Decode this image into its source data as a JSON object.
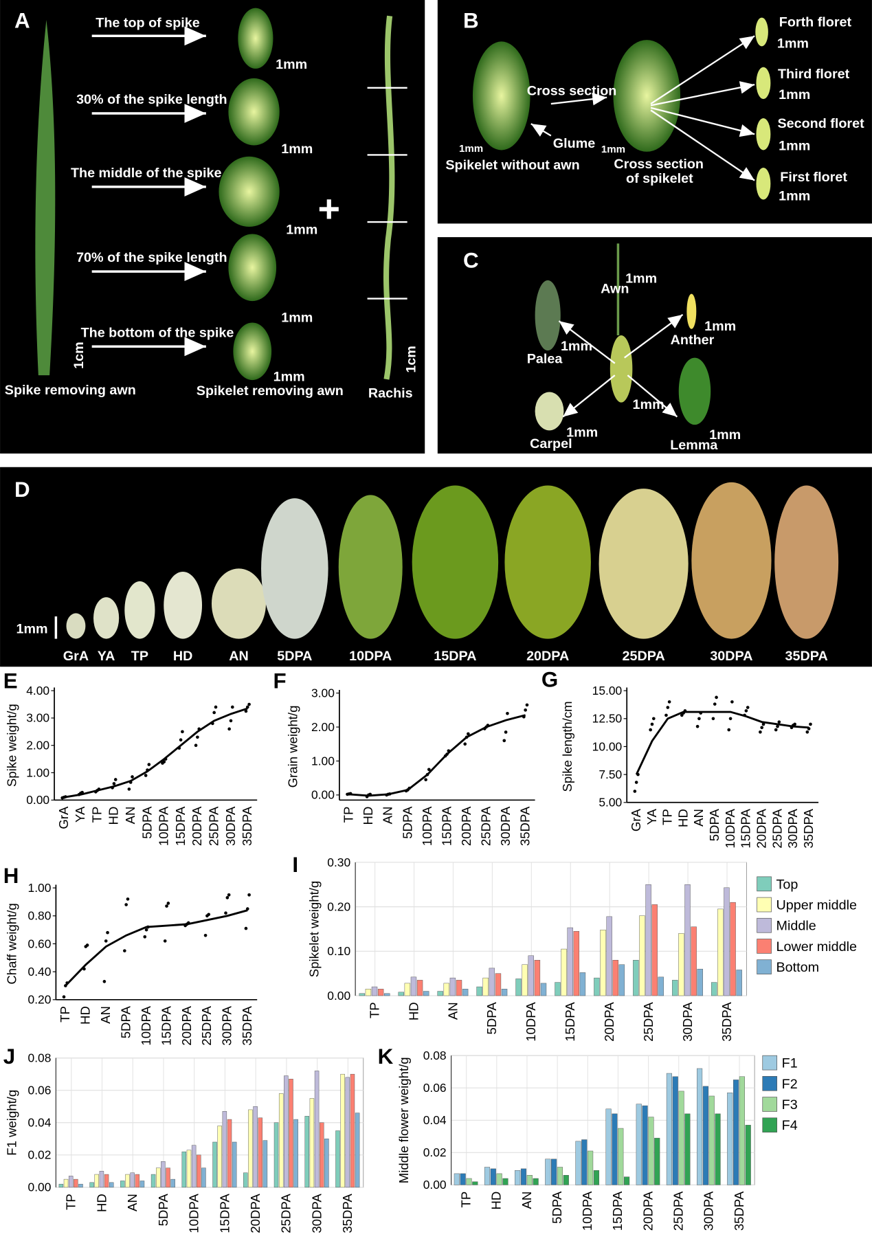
{
  "panels": {
    "A": {
      "label": "A",
      "texts": [
        "The top of spike",
        "1mm",
        "30% of the spike length",
        "1mm",
        "The middle of the spike",
        "1mm",
        "70% of the spike length",
        "1mm",
        "The bottom of the spike",
        "1mm",
        "1cm",
        "1cm",
        "Spike removing awn",
        "Spikelet removing awn",
        "Rachis",
        "+"
      ]
    },
    "B": {
      "label": "B",
      "texts": [
        "Cross section",
        "Glume",
        "1mm",
        "1mm",
        "Spikelet without awn",
        "Cross section",
        "of spikelet",
        "Forth floret",
        "1mm",
        "Third floret",
        "1mm",
        "Second floret",
        "1mm",
        "First floret",
        "1mm"
      ]
    },
    "C": {
      "label": "C",
      "texts": [
        "Awn",
        "1mm",
        "1mm",
        "Anther",
        "1mm",
        "Palea",
        "1mm",
        "1mm",
        "Carpel",
        "1mm",
        "Lemma"
      ]
    },
    "D": {
      "label": "D",
      "scale": "1mm",
      "stages": [
        "GrA",
        "YA",
        "TP",
        "HD",
        "AN",
        "5DPA",
        "10DPA",
        "15DPA",
        "20DPA",
        "25DPA",
        "30DPA",
        "35DPA"
      ]
    }
  },
  "chart_data": [
    {
      "type": "line",
      "label": "E",
      "y_label": "Spike weight/g",
      "color": "#000000",
      "categories": [
        "GrA",
        "YA",
        "TP",
        "HD",
        "AN",
        "5DPA",
        "10DPA",
        "15DPA",
        "20DPA",
        "25DPA",
        "30DPA",
        "35DPA"
      ],
      "values": [
        0.1,
        0.2,
        0.35,
        0.5,
        0.7,
        1.05,
        1.5,
        2.0,
        2.5,
        2.9,
        3.15,
        3.35
      ],
      "replicates": [
        [
          0.08,
          0.1,
          0.12
        ],
        [
          0.2,
          0.25,
          0.28
        ],
        [
          0.3,
          0.35,
          0.4
        ],
        [
          0.45,
          0.6,
          0.75
        ],
        [
          0.4,
          0.65,
          0.85
        ],
        [
          0.9,
          1.1,
          1.3
        ],
        [
          1.35,
          1.4,
          1.5
        ],
        [
          1.9,
          2.2,
          2.5
        ],
        [
          2.0,
          2.3,
          2.6
        ],
        [
          2.8,
          3.2,
          3.4
        ],
        [
          2.6,
          2.9,
          3.4
        ],
        [
          3.25,
          3.4,
          3.5
        ]
      ],
      "ylim": [
        0,
        4
      ],
      "yticks": [
        {
          "value": 0,
          "label": "0.00"
        },
        {
          "value": 1,
          "label": "1.00"
        },
        {
          "value": 2,
          "label": "2.00"
        },
        {
          "value": 3,
          "label": "3.00"
        },
        {
          "value": 4,
          "label": "4.00"
        }
      ],
      "grid": false
    },
    {
      "type": "line",
      "label": "F",
      "y_label": "Grain weight/g",
      "color": "#000000",
      "categories": [
        "TP",
        "HD",
        "AN",
        "5DPA",
        "10DPA",
        "15DPA",
        "20DPA",
        "25DPA",
        "30DPA",
        "35DPA"
      ],
      "values": [
        0.02,
        -0.02,
        0.02,
        0.15,
        0.6,
        1.2,
        1.7,
        2.0,
        2.2,
        2.35
      ],
      "replicates": [
        [
          0.02,
          0.03,
          0.04
        ],
        [
          -0.05,
          0.0,
          0.02
        ],
        [
          0.0,
          0.02,
          0.03
        ],
        [
          0.12,
          0.15,
          0.2
        ],
        [
          0.45,
          0.6,
          0.75
        ],
        [
          1.15,
          1.2,
          1.3
        ],
        [
          1.5,
          1.7,
          1.8
        ],
        [
          1.95,
          2.0,
          2.05
        ],
        [
          1.6,
          1.85,
          2.4
        ],
        [
          2.3,
          2.5,
          2.65
        ]
      ],
      "ylim": [
        -0.15,
        3
      ],
      "yticks": [
        {
          "value": 0,
          "label": "0.00"
        },
        {
          "value": 1,
          "label": "1.00"
        },
        {
          "value": 2,
          "label": "2.00"
        },
        {
          "value": 3,
          "label": "3.00"
        }
      ],
      "grid": false
    },
    {
      "type": "line",
      "label": "G",
      "y_label": "Spike length/cm",
      "color": "#000000",
      "categories": [
        "GrA",
        "YA",
        "TP",
        "HD",
        "AN",
        "5DPA",
        "10DPA",
        "15DPA",
        "20DPA",
        "25DPA",
        "30DPA",
        "35DPA"
      ],
      "values": [
        7.5,
        10.5,
        12.5,
        13.1,
        13.1,
        13.1,
        13.1,
        12.7,
        12.2,
        12.0,
        11.8,
        11.7
      ],
      "replicates": [
        [
          6.0,
          6.8,
          7.5
        ],
        [
          11.5,
          12.0,
          12.5
        ],
        [
          12.8,
          13.5,
          14.0
        ],
        [
          12.8,
          13.0,
          13.2
        ],
        [
          11.8,
          12.5,
          13.0
        ],
        [
          12.5,
          13.8,
          14.4
        ],
        [
          11.5,
          12.5,
          14.0
        ],
        [
          12.8,
          13.2,
          13.5
        ],
        [
          11.3,
          11.7,
          12.0
        ],
        [
          11.5,
          11.8,
          12.2
        ],
        [
          11.7,
          11.9,
          12.0
        ],
        [
          11.3,
          11.6,
          12.0
        ]
      ],
      "ylim": [
        5,
        15
      ],
      "yticks": [
        {
          "value": 5,
          "label": "5.00"
        },
        {
          "value": 7.5,
          "label": "7.50"
        },
        {
          "value": 10,
          "label": "10.00"
        },
        {
          "value": 12.5,
          "label": "12.50"
        },
        {
          "value": 15,
          "label": "15.00"
        }
      ],
      "grid": false
    },
    {
      "type": "line",
      "label": "H",
      "y_label": "Chaff weight/g",
      "color": "#000000",
      "categories": [
        "TP",
        "HD",
        "AN",
        "5DPA",
        "10DPA",
        "15DPA",
        "20DPA",
        "25DPA",
        "30DPA",
        "35DPA"
      ],
      "values": [
        0.3,
        0.45,
        0.58,
        0.66,
        0.72,
        0.73,
        0.74,
        0.77,
        0.8,
        0.84
      ],
      "replicates": [
        [
          0.22,
          0.3,
          0.32
        ],
        [
          0.42,
          0.58,
          0.59
        ],
        [
          0.33,
          0.62,
          0.68
        ],
        [
          0.55,
          0.88,
          0.92
        ],
        [
          0.65,
          0.7,
          0.72
        ],
        [
          0.62,
          0.87,
          0.89
        ],
        [
          0.73,
          0.74,
          0.75
        ],
        [
          0.66,
          0.8,
          0.81
        ],
        [
          0.82,
          0.93,
          0.95
        ],
        [
          0.71,
          0.85,
          0.95
        ]
      ],
      "ylim": [
        0.2,
        1.0
      ],
      "yticks": [
        {
          "value": 0.2,
          "label": "0.20"
        },
        {
          "value": 0.4,
          "label": "0.40"
        },
        {
          "value": 0.6,
          "label": "0.60"
        },
        {
          "value": 0.8,
          "label": "0.80"
        },
        {
          "value": 1.0,
          "label": "1.00"
        }
      ],
      "grid": false
    },
    {
      "type": "bar",
      "label": "I",
      "y_label": "Spikelet weight/g",
      "legend": "right",
      "categories": [
        "TP",
        "HD",
        "AN",
        "5DPA",
        "10DPA",
        "15DPA",
        "20DPA",
        "25DPA",
        "30DPA",
        "35DPA"
      ],
      "series": [
        {
          "name": "Top",
          "color": "#7fcdbb",
          "values": [
            0.005,
            0.008,
            0.01,
            0.02,
            0.038,
            0.03,
            0.04,
            0.08,
            0.035,
            0.03
          ]
        },
        {
          "name": "Upper middle",
          "color": "#ffffb3",
          "values": [
            0.015,
            0.028,
            0.028,
            0.04,
            0.07,
            0.105,
            0.148,
            0.18,
            0.14,
            0.195
          ]
        },
        {
          "name": "Middle",
          "color": "#bebada",
          "values": [
            0.02,
            0.042,
            0.04,
            0.062,
            0.09,
            0.153,
            0.178,
            0.25,
            0.25,
            0.243
          ]
        },
        {
          "name": "Lower middle",
          "color": "#fb8072",
          "values": [
            0.015,
            0.035,
            0.035,
            0.05,
            0.08,
            0.145,
            0.08,
            0.205,
            0.155,
            0.21
          ]
        },
        {
          "name": "Bottom",
          "color": "#80b1d3",
          "values": [
            0.005,
            0.01,
            0.015,
            0.015,
            0.028,
            0.052,
            0.07,
            0.042,
            0.06,
            0.058
          ]
        }
      ],
      "ylim": [
        0,
        0.3
      ],
      "yticks": [
        {
          "value": 0,
          "label": "0.00"
        },
        {
          "value": 0.1,
          "label": "0.10"
        },
        {
          "value": 0.2,
          "label": "0.20"
        },
        {
          "value": 0.3,
          "label": "0.30"
        }
      ],
      "grid": true
    },
    {
      "type": "bar",
      "label": "J",
      "y_label": "F1 weight/g",
      "categories": [
        "TP",
        "HD",
        "AN",
        "5DPA",
        "10DPA",
        "15DPA",
        "20DPA",
        "25DPA",
        "30DPA",
        "35DPA"
      ],
      "series": [
        {
          "color": "#7fcdbb",
          "values": [
            0.002,
            0.003,
            0.004,
            0.008,
            0.022,
            0.028,
            0.009,
            0.04,
            0.044,
            0.035
          ]
        },
        {
          "color": "#ffffb3",
          "values": [
            0.005,
            0.008,
            0.008,
            0.012,
            0.023,
            0.038,
            0.048,
            0.058,
            0.055,
            0.07
          ]
        },
        {
          "color": "#bebada",
          "values": [
            0.007,
            0.01,
            0.009,
            0.016,
            0.026,
            0.047,
            0.05,
            0.069,
            0.072,
            0.068
          ]
        },
        {
          "color": "#fb8072",
          "values": [
            0.005,
            0.008,
            0.008,
            0.012,
            0.02,
            0.042,
            0.043,
            0.067,
            0.04,
            0.07
          ]
        },
        {
          "color": "#80b1d3",
          "values": [
            0.002,
            0.003,
            0.004,
            0.005,
            0.012,
            0.028,
            0.029,
            0.042,
            0.03,
            0.046
          ]
        }
      ],
      "ylim": [
        0,
        0.08
      ],
      "yticks": [
        {
          "value": 0,
          "label": "0.00"
        },
        {
          "value": 0.02,
          "label": "0.02"
        },
        {
          "value": 0.04,
          "label": "0.04"
        },
        {
          "value": 0.06,
          "label": "0.06"
        },
        {
          "value": 0.08,
          "label": "0.08"
        }
      ],
      "grid": true
    },
    {
      "type": "bar",
      "label": "K",
      "y_label": "Middle flower weight/g",
      "legend": "right",
      "categories": [
        "TP",
        "HD",
        "AN",
        "5DPA",
        "10DPA",
        "15DPA",
        "20DPA",
        "25DPA",
        "30DPA",
        "35DPA"
      ],
      "series": [
        {
          "name": "F1",
          "color": "#9ecae1",
          "values": [
            0.007,
            0.011,
            0.009,
            0.016,
            0.027,
            0.047,
            0.05,
            0.069,
            0.072,
            0.057
          ]
        },
        {
          "name": "F2",
          "color": "#2c7bb6",
          "values": [
            0.007,
            0.01,
            0.01,
            0.016,
            0.028,
            0.044,
            0.049,
            0.067,
            0.061,
            0.065
          ]
        },
        {
          "name": "F3",
          "color": "#a1d99b",
          "values": [
            0.004,
            0.007,
            0.006,
            0.011,
            0.021,
            0.035,
            0.042,
            0.058,
            0.055,
            0.067
          ]
        },
        {
          "name": "F4",
          "color": "#31a354",
          "values": [
            0.002,
            0.004,
            0.004,
            0.006,
            0.009,
            0.005,
            0.029,
            0.044,
            0.044,
            0.037
          ]
        }
      ],
      "ylim": [
        0,
        0.08
      ],
      "yticks": [
        {
          "value": 0,
          "label": "0.00"
        },
        {
          "value": 0.02,
          "label": "0.02"
        },
        {
          "value": 0.04,
          "label": "0.04"
        },
        {
          "value": 0.06,
          "label": "0.06"
        },
        {
          "value": 0.08,
          "label": "0.08"
        }
      ],
      "grid": true
    }
  ]
}
